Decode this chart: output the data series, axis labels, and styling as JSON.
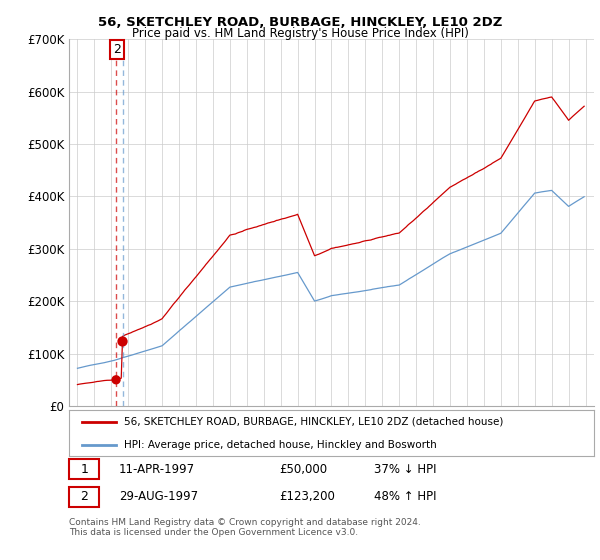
{
  "title1": "56, SKETCHLEY ROAD, BURBAGE, HINCKLEY, LE10 2DZ",
  "title2": "Price paid vs. HM Land Registry's House Price Index (HPI)",
  "ylim": [
    0,
    700000
  ],
  "yticks": [
    0,
    100000,
    200000,
    300000,
    400000,
    500000,
    600000,
    700000
  ],
  "ytick_labels": [
    "£0",
    "£100K",
    "£200K",
    "£300K",
    "£400K",
    "£500K",
    "£600K",
    "£700K"
  ],
  "price_paid_color": "#cc0000",
  "hpi_color": "#6699cc",
  "background_color": "#ffffff",
  "grid_color": "#cccccc",
  "legend_label_property": "56, SKETCHLEY ROAD, BURBAGE, HINCKLEY, LE10 2DZ (detached house)",
  "legend_label_hpi": "HPI: Average price, detached house, Hinckley and Bosworth",
  "transaction1_date": "11-APR-1997",
  "transaction1_price": "£50,000",
  "transaction1_hpi": "37% ↓ HPI",
  "transaction2_date": "29-AUG-1997",
  "transaction2_price": "£123,200",
  "transaction2_hpi": "48% ↑ HPI",
  "footer": "Contains HM Land Registry data © Crown copyright and database right 2024.\nThis data is licensed under the Open Government Licence v3.0.",
  "sale1_year": 1997.28,
  "sale1_price": 50000,
  "sale2_year": 1997.66,
  "sale2_price": 123200,
  "xlim_left": 1994.5,
  "xlim_right": 2025.5,
  "xticks_start": 1995,
  "xticks_end": 2025
}
